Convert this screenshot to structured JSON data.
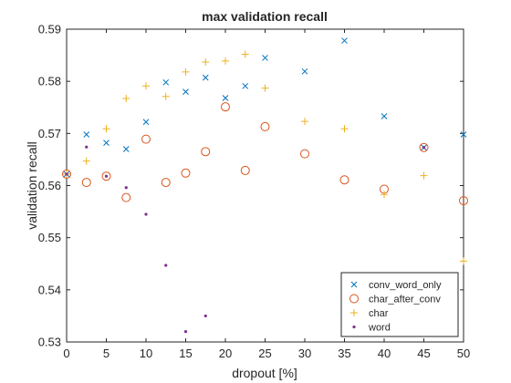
{
  "chart_data": {
    "type": "scatter",
    "title": "max validation recall",
    "xlabel": "dropout [%]",
    "ylabel": "validation recall",
    "xlim": [
      0,
      50
    ],
    "ylim": [
      0.53,
      0.59
    ],
    "x_ticks": [
      "0",
      "5",
      "10",
      "15",
      "20",
      "25",
      "30",
      "35",
      "40",
      "45",
      "50"
    ],
    "y_ticks": [
      "0.53",
      "0.54",
      "0.55",
      "0.56",
      "0.57",
      "0.58",
      "0.59"
    ],
    "grid": false,
    "legend_position": "bottom-right",
    "series": [
      {
        "name": "conv_word_only",
        "marker": "x",
        "color": "#0072BD",
        "points": [
          [
            0,
            0.5622
          ],
          [
            2.5,
            0.5698
          ],
          [
            5,
            0.5682
          ],
          [
            7.5,
            0.567
          ],
          [
            10,
            0.5722
          ],
          [
            12.5,
            0.5798
          ],
          [
            15,
            0.578
          ],
          [
            17.5,
            0.5807
          ],
          [
            20,
            0.5768
          ],
          [
            22.5,
            0.5791
          ],
          [
            25,
            0.5845
          ],
          [
            30,
            0.5819
          ],
          [
            35,
            0.5878
          ],
          [
            40,
            0.5733
          ],
          [
            45,
            0.5673
          ],
          [
            50,
            0.5698
          ]
        ]
      },
      {
        "name": "char_after_conv",
        "marker": "o",
        "color": "#D95319",
        "points": [
          [
            0,
            0.5622
          ],
          [
            2.5,
            0.5606
          ],
          [
            5,
            0.5618
          ],
          [
            7.5,
            0.5577
          ],
          [
            10,
            0.5689
          ],
          [
            12.5,
            0.5606
          ],
          [
            15,
            0.5624
          ],
          [
            17.5,
            0.5665
          ],
          [
            20,
            0.5751
          ],
          [
            22.5,
            0.5629
          ],
          [
            25,
            0.5713
          ],
          [
            30,
            0.5661
          ],
          [
            35,
            0.5611
          ],
          [
            40,
            0.5593
          ],
          [
            45,
            0.5673
          ],
          [
            50,
            0.5571
          ]
        ]
      },
      {
        "name": "char",
        "marker": "+",
        "color": "#EDB120",
        "points": [
          [
            0,
            0.5622
          ],
          [
            2.5,
            0.5647
          ],
          [
            5,
            0.5709
          ],
          [
            7.5,
            0.5767
          ],
          [
            10,
            0.5791
          ],
          [
            12.5,
            0.5771
          ],
          [
            15,
            0.5818
          ],
          [
            17.5,
            0.5837
          ],
          [
            20,
            0.5839
          ],
          [
            22.5,
            0.5852
          ],
          [
            25,
            0.5787
          ],
          [
            30,
            0.5723
          ],
          [
            35,
            0.5709
          ],
          [
            40,
            0.5583
          ],
          [
            45,
            0.5619
          ],
          [
            50,
            0.5455
          ]
        ]
      },
      {
        "name": "word",
        "marker": ".",
        "color": "#7E2F8E",
        "points": [
          [
            0,
            0.5622
          ],
          [
            2.5,
            0.5674
          ],
          [
            5,
            0.5618
          ],
          [
            7.5,
            0.5596
          ],
          [
            10,
            0.5545
          ],
          [
            12.5,
            0.5447
          ],
          [
            15,
            0.532
          ],
          [
            17.5,
            0.535
          ],
          [
            45,
            0.5673
          ]
        ]
      }
    ]
  }
}
